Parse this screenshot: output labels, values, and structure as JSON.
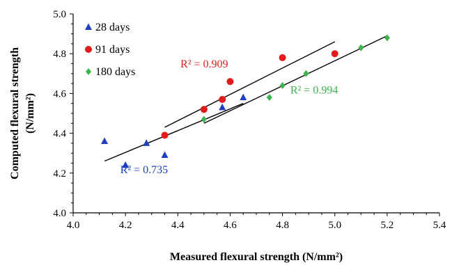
{
  "chart_data": {
    "type": "scatter",
    "xlabel": "Measured flexural strength (N/mm²)",
    "ylabel_line1": "Computed flexural strength",
    "ylabel_line2": "(N/mm²)",
    "xlim": [
      4.0,
      5.4
    ],
    "ylim": [
      4.0,
      5.0
    ],
    "x_ticks": [
      "4.0",
      "4.2",
      "4.4",
      "4.6",
      "4.8",
      "5.0",
      "5.2",
      "5.4"
    ],
    "y_ticks": [
      "4.0",
      "4.2",
      "4.4",
      "4.6",
      "4.8",
      "5.0"
    ],
    "grid": false,
    "legend_position": "top-left",
    "series": [
      {
        "name": "28 days",
        "marker": "triangle",
        "color": "#1f3fbf",
        "x": [
          4.12,
          4.2,
          4.28,
          4.35,
          4.57,
          4.65
        ],
        "y": [
          4.36,
          4.24,
          4.35,
          4.29,
          4.53,
          4.58
        ],
        "trendline": {
          "x": [
            4.12,
            4.65
          ],
          "y": [
            4.26,
            4.55
          ]
        },
        "r2_label": "R² = 0.735",
        "r2_at": [
          4.18,
          4.2
        ]
      },
      {
        "name": "91 days",
        "marker": "circle",
        "color": "#e31b1b",
        "x": [
          4.35,
          4.5,
          4.57,
          4.6,
          4.8,
          5.0
        ],
        "y": [
          4.39,
          4.52,
          4.57,
          4.66,
          4.78,
          4.8
        ],
        "trendline": {
          "x": [
            4.35,
            5.0
          ],
          "y": [
            4.43,
            4.86
          ]
        },
        "r2_label": "R² = 0.909",
        "r2_at": [
          4.41,
          4.73
        ]
      },
      {
        "name": "180 days",
        "marker": "diamond",
        "color": "#3cb44b",
        "x": [
          4.5,
          4.75,
          4.8,
          4.89,
          5.1,
          5.2
        ],
        "y": [
          4.47,
          4.58,
          4.64,
          4.7,
          4.83,
          4.88
        ],
        "trendline": {
          "x": [
            4.5,
            5.2
          ],
          "y": [
            4.45,
            4.89
          ]
        },
        "r2_label": "R² = 0.994",
        "r2_at": [
          4.83,
          4.6
        ]
      }
    ]
  }
}
